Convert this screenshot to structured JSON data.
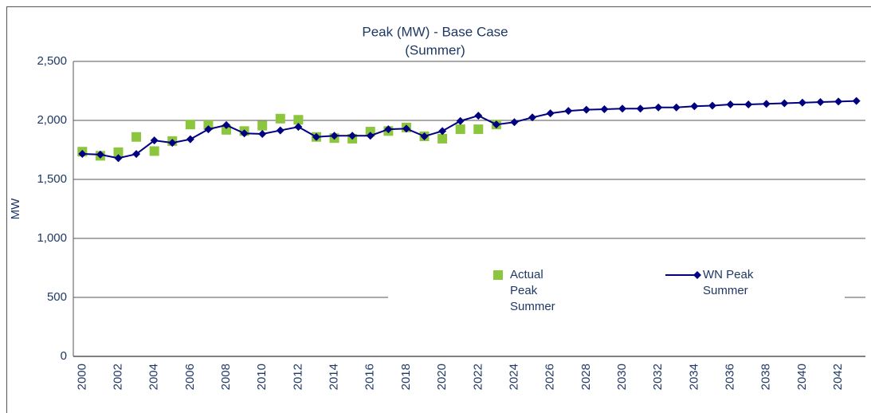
{
  "chart_data": {
    "type": "line",
    "title": "Peak (MW) - Base Case",
    "subtitle": "(Summer)",
    "y_label": "MW",
    "categories": [
      "2000",
      null,
      "2002",
      null,
      "2004",
      null,
      "2006",
      null,
      "2008",
      null,
      "2010",
      null,
      "2012",
      null,
      "2014",
      null,
      "2016",
      null,
      "2018",
      null,
      "2020",
      null,
      "2022",
      null,
      "2024",
      null,
      "2026",
      null,
      "2028",
      null,
      "2030",
      null,
      "2032",
      null,
      "2034",
      null,
      "2036",
      null,
      "2038",
      null,
      "2040",
      null,
      "2042",
      null
    ],
    "series": [
      {
        "name": "Actual Peak Summer",
        "color": "#8cc63f",
        "marker": "square",
        "line": false,
        "values": [
          1735,
          1700,
          1730,
          1860,
          1740,
          1825,
          1965,
          1960,
          1920,
          1910,
          1955,
          2015,
          2005,
          1860,
          1850,
          1845,
          1905,
          1910,
          1940,
          1865,
          1845,
          1925,
          1925,
          1965,
          null,
          null,
          null,
          null,
          null,
          null,
          null,
          null,
          null,
          null,
          null,
          null,
          null,
          null,
          null,
          null,
          null,
          null,
          null,
          null
        ]
      },
      {
        "name": "WN Peak Summer",
        "color": "#000080",
        "marker": "diamond",
        "line": true,
        "values": [
          1716,
          1710,
          1680,
          1715,
          1830,
          1810,
          1840,
          1925,
          1960,
          1890,
          1885,
          1915,
          1945,
          1860,
          1870,
          1870,
          1870,
          1925,
          1930,
          1865,
          1910,
          1995,
          2040,
          1965,
          1985,
          2025,
          2060,
          2080,
          2090,
          2095,
          2100,
          2100,
          2110,
          2110,
          2120,
          2125,
          2135,
          2135,
          2140,
          2145,
          2150,
          2155,
          2160,
          2165
        ]
      }
    ],
    "ylim": [
      0,
      2500
    ],
    "yticks": [
      0,
      500,
      {
        "value": 1000,
        "label": "1,000"
      },
      {
        "value": 1500,
        "label": "1,500"
      },
      {
        "value": 2000,
        "label": "2,000"
      },
      {
        "value": 2500,
        "label": "2,500"
      }
    ],
    "grid": true
  }
}
